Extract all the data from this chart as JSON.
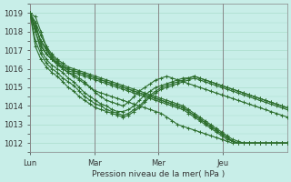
{
  "title": "",
  "xlabel": "Pression niveau de la mer( hPa )",
  "ylabel": "",
  "bg_color": "#c8eee8",
  "grid_color": "#aaddcc",
  "line_color": "#2d6e2d",
  "ylim": [
    1011.5,
    1019.5
  ],
  "yticks": [
    1012,
    1013,
    1014,
    1015,
    1016,
    1017,
    1018,
    1019
  ],
  "days": [
    "Lun",
    "Mar",
    "Mer",
    "Jeu"
  ],
  "day_positions": [
    0,
    24,
    48,
    72
  ],
  "vline_positions": [
    0,
    24,
    48,
    72
  ],
  "xlim": [
    0,
    96
  ],
  "lines": [
    [
      1019.0,
      1018.8,
      1018.0,
      1017.2,
      1016.5,
      1016.2,
      1016.0,
      1015.8,
      1015.6,
      1015.4,
      1015.2,
      1015.0,
      1014.8,
      1014.7,
      1014.6,
      1014.5,
      1014.4,
      1014.3,
      1014.2,
      1014.1,
      1014.0,
      1013.9,
      1013.8,
      1013.7,
      1013.6,
      1013.4,
      1013.2,
      1013.0,
      1012.9,
      1012.8,
      1012.7,
      1012.6,
      1012.5,
      1012.4,
      1012.3,
      1012.2,
      1012.1,
      1012.0,
      1012.0,
      1012.0,
      1012.0,
      1012.0,
      1012.0,
      1012.0,
      1012.0,
      1012.0,
      1012.0,
      1012.0
    ],
    [
      1019.0,
      1018.5,
      1017.8,
      1017.2,
      1016.8,
      1016.5,
      1016.3,
      1016.1,
      1016.0,
      1015.9,
      1015.8,
      1015.7,
      1015.6,
      1015.5,
      1015.4,
      1015.3,
      1015.2,
      1015.1,
      1015.0,
      1014.9,
      1014.8,
      1014.7,
      1014.6,
      1014.5,
      1014.4,
      1014.3,
      1014.2,
      1014.1,
      1014.0,
      1013.8,
      1013.6,
      1013.4,
      1013.2,
      1013.0,
      1012.8,
      1012.6,
      1012.4,
      1012.2,
      1012.1,
      1012.0,
      1012.0,
      1012.0,
      1012.0,
      1012.0,
      1012.0,
      1012.0,
      1012.0,
      1012.0
    ],
    [
      1019.0,
      1018.3,
      1017.5,
      1017.0,
      1016.6,
      1016.3,
      1016.1,
      1015.9,
      1015.8,
      1015.7,
      1015.6,
      1015.5,
      1015.4,
      1015.3,
      1015.2,
      1015.1,
      1015.0,
      1014.9,
      1014.8,
      1014.7,
      1014.6,
      1014.5,
      1014.4,
      1014.3,
      1014.2,
      1014.1,
      1014.0,
      1013.9,
      1013.8,
      1013.6,
      1013.4,
      1013.2,
      1013.0,
      1012.8,
      1012.6,
      1012.4,
      1012.2,
      1012.1,
      1012.0,
      1012.0,
      1012.0,
      1012.0,
      1012.0,
      1012.0,
      1012.0,
      1012.0,
      1012.0,
      1012.0
    ],
    [
      1019.0,
      1018.0,
      1017.2,
      1016.8,
      1016.5,
      1016.3,
      1016.1,
      1016.0,
      1015.9,
      1015.8,
      1015.7,
      1015.6,
      1015.5,
      1015.4,
      1015.3,
      1015.2,
      1015.1,
      1015.0,
      1014.9,
      1014.8,
      1014.7,
      1014.6,
      1014.5,
      1014.4,
      1014.3,
      1014.2,
      1014.1,
      1014.0,
      1013.9,
      1013.7,
      1013.5,
      1013.3,
      1013.1,
      1012.9,
      1012.7,
      1012.5,
      1012.3,
      1012.1,
      1012.0,
      1012.0,
      1012.0,
      1012.0,
      1012.0,
      1012.0,
      1012.0,
      1012.0,
      1012.0,
      1012.0
    ],
    [
      1019.0,
      1018.2,
      1017.5,
      1017.1,
      1016.7,
      1016.4,
      1016.2,
      1016.0,
      1015.9,
      1015.8,
      1015.7,
      1015.6,
      1015.5,
      1015.4,
      1015.3,
      1015.2,
      1015.1,
      1015.0,
      1014.9,
      1014.8,
      1014.7,
      1014.6,
      1014.5,
      1014.4,
      1014.3,
      1014.2,
      1014.1,
      1014.0,
      1013.9,
      1013.7,
      1013.5,
      1013.3,
      1013.1,
      1012.9,
      1012.7,
      1012.5,
      1012.3,
      1012.1,
      1012.0,
      1012.0,
      1012.0,
      1012.0,
      1012.0,
      1012.0,
      1012.0,
      1012.0,
      1012.0,
      1012.0
    ],
    [
      1019.0,
      1018.5,
      1017.3,
      1016.8,
      1016.5,
      1016.3,
      1016.0,
      1015.8,
      1015.7,
      1015.5,
      1015.3,
      1015.0,
      1014.7,
      1014.5,
      1014.3,
      1014.2,
      1014.1,
      1014.0,
      1014.2,
      1014.5,
      1014.8,
      1015.0,
      1015.2,
      1015.4,
      1015.5,
      1015.6,
      1015.5,
      1015.4,
      1015.3,
      1015.2,
      1015.1,
      1015.0,
      1014.9,
      1014.8,
      1014.7,
      1014.6,
      1014.5,
      1014.4,
      1014.3,
      1014.2,
      1014.1,
      1014.0,
      1013.9,
      1013.8,
      1013.7,
      1013.6,
      1013.5,
      1013.4
    ],
    [
      1019.0,
      1018.0,
      1017.0,
      1016.5,
      1016.2,
      1016.0,
      1015.8,
      1015.5,
      1015.3,
      1015.0,
      1014.7,
      1014.5,
      1014.3,
      1014.1,
      1014.0,
      1013.8,
      1013.7,
      1013.7,
      1013.8,
      1014.0,
      1014.3,
      1014.6,
      1014.8,
      1015.0,
      1015.1,
      1015.2,
      1015.3,
      1015.4,
      1015.5,
      1015.5,
      1015.6,
      1015.5,
      1015.4,
      1015.3,
      1015.2,
      1015.1,
      1015.0,
      1014.9,
      1014.8,
      1014.7,
      1014.6,
      1014.5,
      1014.4,
      1014.3,
      1014.2,
      1014.1,
      1014.0,
      1013.9
    ],
    [
      1019.0,
      1017.5,
      1016.8,
      1016.3,
      1016.0,
      1015.8,
      1015.5,
      1015.3,
      1015.1,
      1014.8,
      1014.5,
      1014.3,
      1014.1,
      1014.0,
      1013.8,
      1013.7,
      1013.6,
      1013.5,
      1013.6,
      1013.8,
      1014.0,
      1014.3,
      1014.6,
      1014.8,
      1015.0,
      1015.1,
      1015.2,
      1015.3,
      1015.4,
      1015.5,
      1015.6,
      1015.5,
      1015.4,
      1015.3,
      1015.2,
      1015.1,
      1015.0,
      1014.9,
      1014.8,
      1014.7,
      1014.6,
      1014.5,
      1014.4,
      1014.3,
      1014.2,
      1014.1,
      1014.0,
      1013.9
    ],
    [
      1019.0,
      1017.2,
      1016.5,
      1016.1,
      1015.8,
      1015.6,
      1015.3,
      1015.0,
      1014.8,
      1014.5,
      1014.3,
      1014.1,
      1013.9,
      1013.8,
      1013.7,
      1013.6,
      1013.5,
      1013.4,
      1013.5,
      1013.7,
      1013.9,
      1014.2,
      1014.5,
      1014.7,
      1014.9,
      1015.0,
      1015.1,
      1015.2,
      1015.3,
      1015.4,
      1015.5,
      1015.4,
      1015.3,
      1015.2,
      1015.1,
      1015.0,
      1014.9,
      1014.8,
      1014.7,
      1014.6,
      1014.5,
      1014.4,
      1014.3,
      1014.2,
      1014.1,
      1014.0,
      1013.9,
      1013.8
    ]
  ]
}
